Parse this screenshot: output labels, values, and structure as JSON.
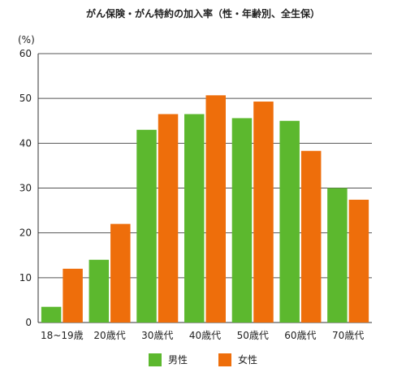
{
  "chart_data": {
    "type": "bar",
    "title": "がん保険・がん特約の加入率（性・年齢別、全生保）",
    "ylabel": "(%)",
    "xlabel": "",
    "ylim": [
      0,
      60
    ],
    "yticks": [
      0,
      10,
      20,
      30,
      40,
      50,
      60
    ],
    "categories": [
      "18~19歳",
      "20歳代",
      "30歳代",
      "40歳代",
      "50歳代",
      "60歳代",
      "70歳代"
    ],
    "series": [
      {
        "name": "男性",
        "color": "#5cb82e",
        "values": [
          3.5,
          14.0,
          43.0,
          46.5,
          45.6,
          45.0,
          30.0
        ]
      },
      {
        "name": "女性",
        "color": "#ee6e0b",
        "values": [
          12.0,
          22.0,
          46.5,
          50.7,
          49.3,
          38.3,
          27.4
        ]
      }
    ],
    "grid": true,
    "legend_position": "bottom"
  }
}
